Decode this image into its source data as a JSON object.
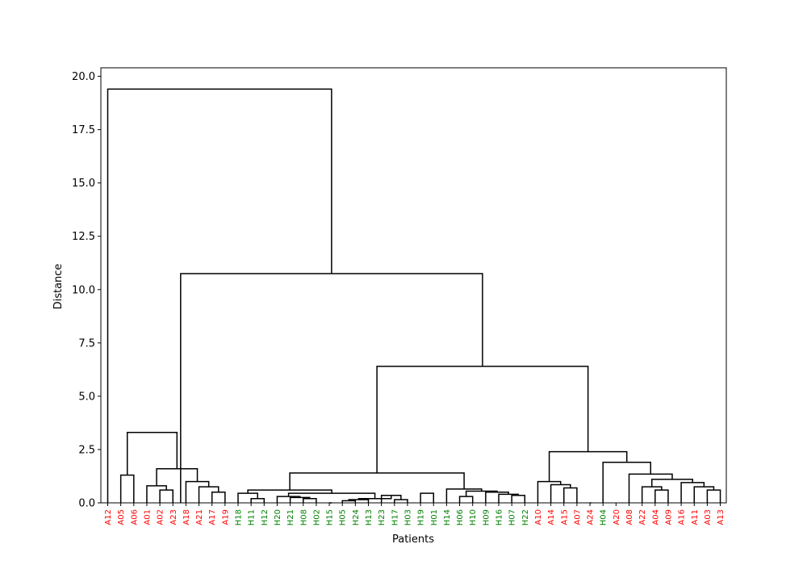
{
  "chart_data": {
    "type": "dendrogram",
    "xlabel": "Patients",
    "ylabel": "Distance",
    "ylim": [
      0,
      20.4
    ],
    "yticks": [
      "0.0",
      "2.5",
      "5.0",
      "7.5",
      "10.0",
      "12.5",
      "15.0",
      "17.5",
      "20.0"
    ],
    "grid": false,
    "colors": {
      "A": "#ff0000",
      "H": "#008000",
      "link": "#000000"
    },
    "leaves": [
      "A12",
      "A05",
      "A06",
      "A01",
      "A02",
      "A23",
      "A18",
      "A21",
      "A17",
      "A19",
      "H18",
      "H11",
      "H12",
      "H20",
      "H21",
      "H08",
      "H02",
      "H15",
      "H05",
      "H24",
      "H13",
      "H23",
      "H17",
      "H03",
      "H19",
      "H01",
      "H14",
      "H06",
      "H10",
      "H09",
      "H16",
      "H07",
      "H22",
      "A10",
      "A14",
      "A15",
      "A07",
      "A24",
      "H04",
      "A20",
      "A08",
      "A22",
      "A04",
      "A09",
      "A16",
      "A11",
      "A03",
      "A13"
    ],
    "merges": [
      {
        "x": [
          1,
          2
        ],
        "h": 1.3
      },
      {
        "x": [
          4,
          5
        ],
        "h": 0.6
      },
      {
        "x": [
          3,
          4.5
        ],
        "h": 0.8
      },
      {
        "x": [
          8,
          9
        ],
        "h": 0.5
      },
      {
        "x": [
          7,
          8.5
        ],
        "h": 0.75
      },
      {
        "x": [
          6,
          7.75
        ],
        "h": 1.0
      },
      {
        "x": [
          3.75,
          6.875
        ],
        "h": 1.6
      },
      {
        "x": [
          1.5,
          5.3125
        ],
        "h": 3.3
      },
      {
        "x": [
          11,
          12
        ],
        "h": 0.2
      },
      {
        "x": [
          10,
          11.5
        ],
        "h": 0.45
      },
      {
        "x": [
          15,
          16
        ],
        "h": 0.2
      },
      {
        "x": [
          14,
          15.5
        ],
        "h": 0.25
      },
      {
        "x": [
          13,
          14.75
        ],
        "h": 0.3
      },
      {
        "x": [
          18,
          19
        ],
        "h": 0.1
      },
      {
        "x": [
          18.5,
          20
        ],
        "h": 0.15
      },
      {
        "x": [
          22,
          23
        ],
        "h": 0.15
      },
      {
        "x": [
          21,
          22.5
        ],
        "h": 0.35
      },
      {
        "x": [
          19.25,
          21.75
        ],
        "h": 0.2
      },
      {
        "x": [
          13.875,
          20.5
        ],
        "h": 0.45
      },
      {
        "x": [
          17,
          17.2
        ],
        "h": 0.0
      },
      {
        "x": [
          10.75,
          17.1875
        ],
        "h": 0.6
      },
      {
        "x": [
          24,
          25
        ],
        "h": 0.45
      },
      {
        "x": [
          27,
          28
        ],
        "h": 0.3
      },
      {
        "x": [
          31,
          32
        ],
        "h": 0.35
      },
      {
        "x": [
          30,
          31.5
        ],
        "h": 0.4
      },
      {
        "x": [
          29,
          30.75
        ],
        "h": 0.5
      },
      {
        "x": [
          27.5,
          29.875
        ],
        "h": 0.55
      },
      {
        "x": [
          26,
          28.6875
        ],
        "h": 0.65
      },
      {
        "x": [
          13.96875,
          27.34375
        ],
        "h": 1.4
      },
      {
        "x": [
          35,
          36
        ],
        "h": 0.7
      },
      {
        "x": [
          34,
          35.5
        ],
        "h": 0.85
      },
      {
        "x": [
          33,
          34.75
        ],
        "h": 1.0
      },
      {
        "x": [
          42,
          43
        ],
        "h": 0.6
      },
      {
        "x": [
          41,
          42.5
        ],
        "h": 0.75
      },
      {
        "x": [
          46,
          47
        ],
        "h": 0.6
      },
      {
        "x": [
          45,
          46.5
        ],
        "h": 0.75
      },
      {
        "x": [
          44,
          45.75
        ],
        "h": 0.95
      },
      {
        "x": [
          41.75,
          44.875
        ],
        "h": 1.1
      },
      {
        "x": [
          40,
          43.3125
        ],
        "h": 1.35
      },
      {
        "x": [
          38,
          41.65625
        ],
        "h": 1.9
      },
      {
        "x": [
          37,
          37.1
        ],
        "h": 0.0
      },
      {
        "x": [
          33.875,
          39.828125
        ],
        "h": 2.4
      },
      {
        "x": [
          20.65625,
          36.8515625
        ],
        "h": 6.4
      },
      {
        "x": [
          5.59375,
          28.75390625
        ],
        "h": 10.75
      },
      {
        "x": [
          0,
          17.173828125
        ],
        "h": 19.4
      }
    ]
  }
}
